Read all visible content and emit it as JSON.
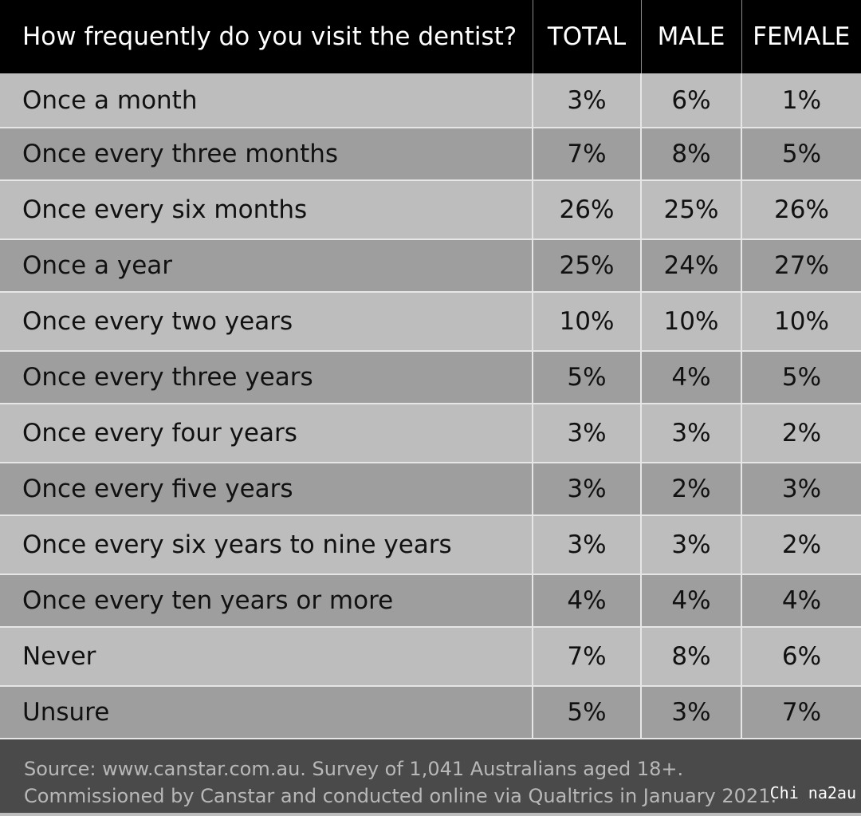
{
  "chart_data": {
    "type": "table",
    "title": "How frequently do you visit the dentist?",
    "columns": [
      "TOTAL",
      "MALE",
      "FEMALE"
    ],
    "rows": [
      {
        "label": "Once a month",
        "values": [
          "3%",
          "6%",
          "1%"
        ]
      },
      {
        "label": "Once every three months",
        "values": [
          "7%",
          "8%",
          "5%"
        ]
      },
      {
        "label": "Once every six months",
        "values": [
          "26%",
          "25%",
          "26%"
        ]
      },
      {
        "label": "Once a year",
        "values": [
          "25%",
          "24%",
          "27%"
        ]
      },
      {
        "label": "Once every two years",
        "values": [
          "10%",
          "10%",
          "10%"
        ]
      },
      {
        "label": "Once every three years",
        "values": [
          "5%",
          "4%",
          "5%"
        ]
      },
      {
        "label": "Once every four years",
        "values": [
          "3%",
          "3%",
          "2%"
        ]
      },
      {
        "label": "Once every five years",
        "values": [
          "3%",
          "2%",
          "3%"
        ]
      },
      {
        "label": "Once every six years to nine years",
        "values": [
          "3%",
          "3%",
          "2%"
        ]
      },
      {
        "label": "Once every ten years or more",
        "values": [
          "4%",
          "4%",
          "4%"
        ]
      },
      {
        "label": "Never",
        "values": [
          "7%",
          "8%",
          "6%"
        ]
      },
      {
        "label": "Unsure",
        "values": [
          "5%",
          "3%",
          "7%"
        ]
      }
    ]
  },
  "source": {
    "line1": "Source: www.canstar.com.au. Survey of 1,041 Australians aged 18+.",
    "line2": "Commissioned by Canstar and conducted online via Qualtrics in January 2021."
  },
  "watermark": "Chi na2au",
  "colors": {
    "header_bg": "#000000",
    "row_light": "#bdbdbd",
    "row_dark": "#9e9e9e",
    "footer_bg": "#4a4a4a"
  }
}
